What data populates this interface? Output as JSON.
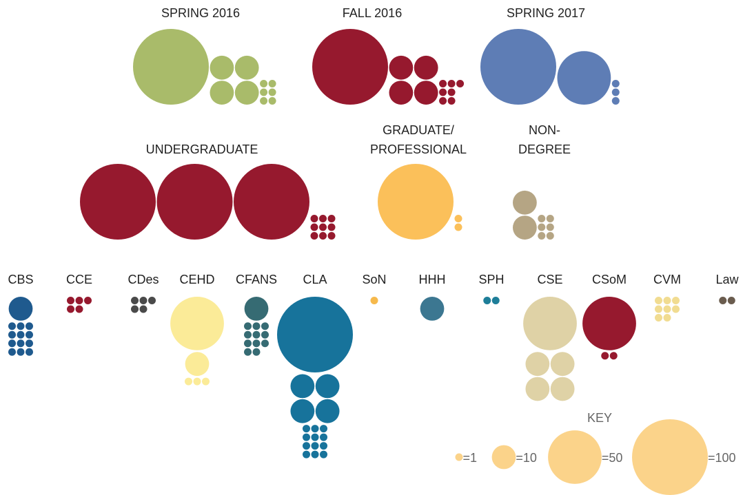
{
  "key": {
    "title": "KEY",
    "units": [
      {
        "value": 1,
        "label": "=1"
      },
      {
        "value": 10,
        "label": "=10"
      },
      {
        "value": 50,
        "label": "=50"
      },
      {
        "value": 100,
        "label": "=100"
      }
    ],
    "color": "#fbd38a"
  },
  "groups": [
    {
      "label": [
        "SPRING 2016"
      ],
      "color": "#a9bb6a",
      "counts": [
        6,
        4,
        0,
        1
      ]
    },
    {
      "label": [
        "FALL 2016"
      ],
      "color": "#96192e",
      "counts": [
        7,
        4,
        0,
        1
      ]
    },
    {
      "label": [
        "SPRING 2017"
      ],
      "color": "#5e7db5",
      "counts": [
        3,
        0,
        1,
        1
      ]
    },
    {
      "label": [
        "UNDERGRADUATE"
      ],
      "color": "#96192e",
      "counts": [
        9,
        0,
        0,
        3
      ]
    },
    {
      "label": [
        "GRADUATE/",
        "PROFESSIONAL"
      ],
      "color": "#fbc05a",
      "counts": [
        2,
        0,
        0,
        1
      ]
    },
    {
      "label": [
        "NON-",
        "DEGREE"
      ],
      "color": "#b5a584",
      "counts": [
        6,
        2,
        0,
        0
      ]
    },
    {
      "label": [
        "CBS"
      ],
      "color": "#1f5a8e",
      "counts": [
        12,
        1,
        0,
        0
      ]
    },
    {
      "label": [
        "CCE"
      ],
      "color": "#96192e",
      "counts": [
        5,
        0,
        0,
        0
      ]
    },
    {
      "label": [
        "CDes"
      ],
      "color": "#4a4a4a",
      "counts": [
        5,
        0,
        0,
        0
      ]
    },
    {
      "label": [
        "CEHD"
      ],
      "color": "#fbeb98",
      "counts": [
        3,
        1,
        1,
        0
      ]
    },
    {
      "label": [
        "CFANS"
      ],
      "color": "#366b73",
      "counts": [
        11,
        1,
        0,
        0
      ]
    },
    {
      "label": [
        "CLA"
      ],
      "color": "#17739b",
      "counts": [
        12,
        4,
        0,
        1
      ]
    },
    {
      "label": [
        "SoN"
      ],
      "color": "#f6b94c",
      "counts": [
        1,
        0,
        0,
        0
      ]
    },
    {
      "label": [
        "HHH"
      ],
      "color": "#3c7791",
      "counts": [
        0,
        1,
        0,
        0
      ]
    },
    {
      "label": [
        "SPH"
      ],
      "color": "#1e7e99",
      "counts": [
        2,
        0,
        0,
        0
      ]
    },
    {
      "label": [
        "CSE"
      ],
      "color": "#dfd2a6",
      "counts": [
        0,
        4,
        1,
        0
      ]
    },
    {
      "label": [
        "CSoM"
      ],
      "color": "#96192e",
      "counts": [
        2,
        0,
        1,
        0
      ]
    },
    {
      "label": [
        "CVM"
      ],
      "color": "#f1dc91",
      "counts": [
        8,
        0,
        0,
        0
      ]
    },
    {
      "label": [
        "Law"
      ],
      "color": "#6a5c4e",
      "counts": [
        2,
        0,
        0,
        0
      ]
    }
  ]
}
